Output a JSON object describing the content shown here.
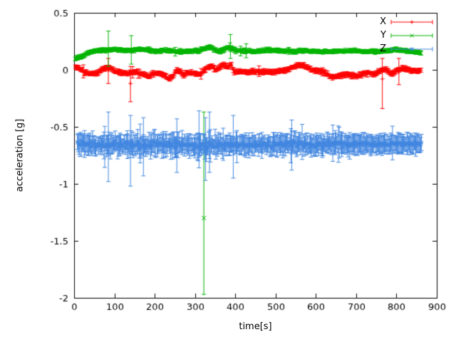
{
  "chart_data": {
    "type": "scatter",
    "title": "",
    "xlabel": "time[s]",
    "ylabel": "acceleration [g]",
    "xlim": [
      0,
      900
    ],
    "ylim": [
      -2,
      0.5
    ],
    "xticks": [
      0,
      100,
      200,
      300,
      400,
      500,
      600,
      700,
      800,
      900
    ],
    "xtick_labels": [
      "0",
      "100",
      "200",
      "300",
      "400",
      "500",
      "600",
      "700",
      "800",
      "900"
    ],
    "yticks": [
      -2,
      -1.5,
      -1,
      -0.5,
      0,
      0.5
    ],
    "ytick_labels": [
      "-2",
      "-1.5",
      "-1",
      "-0.5",
      "0",
      "0.5"
    ],
    "grid": false,
    "background": "#ffffff",
    "axis_color": "#000000",
    "legend": {
      "position": "top-right"
    },
    "series": [
      {
        "name": "X",
        "color": "#ff0000",
        "marker": "plus",
        "style": "yerrorbars",
        "trange": [
          3,
          862
        ],
        "step": 2,
        "noise": 0.012,
        "err_mean": 0.018,
        "err_jitter": 0.01,
        "spike_prob": 0.03,
        "spike_scale": 3,
        "noise_scale": [
          [
            0,
            1
          ],
          [
            80,
            1.1
          ],
          [
            200,
            1.1
          ],
          [
            300,
            1.2
          ],
          [
            400,
            1.0
          ],
          [
            600,
            1.0
          ],
          [
            740,
            1.3
          ],
          [
            800,
            1.2
          ],
          [
            862,
            0.9
          ]
        ],
        "keyframes": [
          [
            0,
            0.03
          ],
          [
            15,
            0.01
          ],
          [
            25,
            -0.02
          ],
          [
            40,
            -0.035
          ],
          [
            55,
            -0.03
          ],
          [
            70,
            0.0
          ],
          [
            80,
            0.02
          ],
          [
            90,
            0.015
          ],
          [
            100,
            -0.01
          ],
          [
            115,
            -0.025
          ],
          [
            130,
            -0.03
          ],
          [
            145,
            -0.02
          ],
          [
            160,
            -0.025
          ],
          [
            175,
            -0.04
          ],
          [
            185,
            -0.055
          ],
          [
            195,
            -0.035
          ],
          [
            210,
            -0.025
          ],
          [
            225,
            -0.05
          ],
          [
            235,
            -0.085
          ],
          [
            245,
            -0.06
          ],
          [
            252,
            -0.015
          ],
          [
            262,
            -0.01
          ],
          [
            272,
            -0.05
          ],
          [
            282,
            -0.025
          ],
          [
            295,
            -0.03
          ],
          [
            308,
            -0.04
          ],
          [
            318,
            -0.025
          ],
          [
            330,
            0.02
          ],
          [
            342,
            0.03
          ],
          [
            352,
            0.0
          ],
          [
            362,
            0.02
          ],
          [
            372,
            0.045
          ],
          [
            382,
            0.02
          ],
          [
            390,
            0.05
          ],
          [
            396,
            -0.02
          ],
          [
            410,
            -0.015
          ],
          [
            430,
            -0.02
          ],
          [
            455,
            -0.015
          ],
          [
            480,
            -0.02
          ],
          [
            505,
            -0.015
          ],
          [
            525,
            -0.005
          ],
          [
            545,
            0.025
          ],
          [
            560,
            0.045
          ],
          [
            575,
            0.03
          ],
          [
            590,
            0.0
          ],
          [
            605,
            -0.01
          ],
          [
            622,
            -0.02
          ],
          [
            638,
            -0.065
          ],
          [
            652,
            -0.055
          ],
          [
            668,
            -0.04
          ],
          [
            685,
            -0.045
          ],
          [
            700,
            -0.06
          ],
          [
            715,
            -0.035
          ],
          [
            730,
            -0.025
          ],
          [
            745,
            -0.04
          ],
          [
            758,
            -0.01
          ],
          [
            772,
            0.01
          ],
          [
            788,
            -0.035
          ],
          [
            800,
            -0.005
          ],
          [
            815,
            0.01
          ],
          [
            832,
            0.0
          ],
          [
            848,
            -0.01
          ],
          [
            862,
            -0.005
          ]
        ],
        "outliers": [
          [
            85,
            0.0,
            -0.12,
            0.1
          ],
          [
            140,
            -0.12,
            -0.28,
            0.03
          ],
          [
            765,
            -0.08,
            -0.34,
            0.1
          ],
          [
            806,
            -0.02,
            -0.13,
            0.1
          ]
        ]
      },
      {
        "name": "Y",
        "color": "#00b400",
        "marker": "cross",
        "style": "yerrorbars",
        "trange": [
          3,
          862
        ],
        "step": 2,
        "noise": 0.01,
        "err_mean": 0.016,
        "err_jitter": 0.009,
        "spike_prob": 0.02,
        "spike_scale": 3,
        "noise_scale": [
          [
            0,
            1
          ],
          [
            100,
            1.2
          ],
          [
            300,
            1.2
          ],
          [
            400,
            1.3
          ],
          [
            500,
            1.0
          ],
          [
            862,
            0.9
          ]
        ],
        "keyframes": [
          [
            0,
            0.1
          ],
          [
            12,
            0.105
          ],
          [
            22,
            0.12
          ],
          [
            35,
            0.15
          ],
          [
            50,
            0.165
          ],
          [
            70,
            0.17
          ],
          [
            90,
            0.175
          ],
          [
            110,
            0.18
          ],
          [
            130,
            0.17
          ],
          [
            150,
            0.175
          ],
          [
            170,
            0.18
          ],
          [
            190,
            0.17
          ],
          [
            210,
            0.165
          ],
          [
            230,
            0.17
          ],
          [
            250,
            0.16
          ],
          [
            270,
            0.16
          ],
          [
            290,
            0.165
          ],
          [
            310,
            0.17
          ],
          [
            325,
            0.185
          ],
          [
            338,
            0.2
          ],
          [
            350,
            0.17
          ],
          [
            362,
            0.16
          ],
          [
            375,
            0.185
          ],
          [
            388,
            0.2
          ],
          [
            398,
            0.17
          ],
          [
            420,
            0.165
          ],
          [
            450,
            0.16
          ],
          [
            480,
            0.168
          ],
          [
            510,
            0.17
          ],
          [
            540,
            0.162
          ],
          [
            570,
            0.168
          ],
          [
            600,
            0.162
          ],
          [
            630,
            0.16
          ],
          [
            660,
            0.162
          ],
          [
            690,
            0.168
          ],
          [
            720,
            0.162
          ],
          [
            750,
            0.16
          ],
          [
            778,
            0.168
          ],
          [
            800,
            0.178
          ],
          [
            815,
            0.172
          ],
          [
            832,
            0.162
          ],
          [
            848,
            0.152
          ],
          [
            862,
            0.15
          ]
        ],
        "outliers": [
          [
            85,
            0.18,
            0.03,
            0.34
          ],
          [
            142,
            0.17,
            0.05,
            0.3
          ],
          [
            322,
            -1.3,
            -1.97,
            -0.37
          ],
          [
            388,
            0.2,
            0.1,
            0.31
          ]
        ]
      },
      {
        "name": "Z",
        "color": "#4186e0",
        "marker": "star",
        "style": "yerrorbars",
        "trange": [
          8,
          862
        ],
        "step": 2,
        "noise": 0.034,
        "err_mean": 0.075,
        "err_jitter": 0.045,
        "spike_prob": 0.06,
        "spike_scale": 2.2,
        "noise_scale": [
          [
            8,
            1.0
          ],
          [
            60,
            1.2
          ],
          [
            100,
            1.35
          ],
          [
            200,
            1.3
          ],
          [
            300,
            1.4
          ],
          [
            380,
            1.3
          ],
          [
            450,
            1.2
          ],
          [
            550,
            1.15
          ],
          [
            620,
            1.1
          ],
          [
            700,
            0.85
          ],
          [
            780,
            0.8
          ],
          [
            862,
            0.8
          ]
        ],
        "keyframes": [
          [
            8,
            -0.64
          ],
          [
            40,
            -0.655
          ],
          [
            80,
            -0.66
          ],
          [
            120,
            -0.65
          ],
          [
            160,
            -0.66
          ],
          [
            200,
            -0.655
          ],
          [
            240,
            -0.65
          ],
          [
            280,
            -0.66
          ],
          [
            320,
            -0.665
          ],
          [
            360,
            -0.66
          ],
          [
            400,
            -0.66
          ],
          [
            440,
            -0.655
          ],
          [
            480,
            -0.66
          ],
          [
            520,
            -0.655
          ],
          [
            560,
            -0.65
          ],
          [
            600,
            -0.657
          ],
          [
            640,
            -0.65
          ],
          [
            680,
            -0.655
          ],
          [
            720,
            -0.65
          ],
          [
            760,
            -0.652
          ],
          [
            800,
            -0.65
          ],
          [
            862,
            -0.648
          ]
        ],
        "outliers": [
          [
            85,
            -0.66,
            -0.98,
            -0.37
          ],
          [
            140,
            -0.66,
            -1.02,
            -0.4
          ],
          [
            172,
            -0.62,
            -0.93,
            -0.42
          ],
          [
            255,
            -0.62,
            -0.9,
            -0.43
          ],
          [
            310,
            -0.6,
            -0.86,
            -0.36
          ],
          [
            326,
            -0.7,
            -0.97,
            -0.42
          ],
          [
            336,
            -0.63,
            -0.9,
            -0.37
          ],
          [
            395,
            -0.66,
            -0.95,
            -0.4
          ],
          [
            540,
            -0.63,
            -0.88,
            -0.44
          ]
        ]
      }
    ]
  }
}
